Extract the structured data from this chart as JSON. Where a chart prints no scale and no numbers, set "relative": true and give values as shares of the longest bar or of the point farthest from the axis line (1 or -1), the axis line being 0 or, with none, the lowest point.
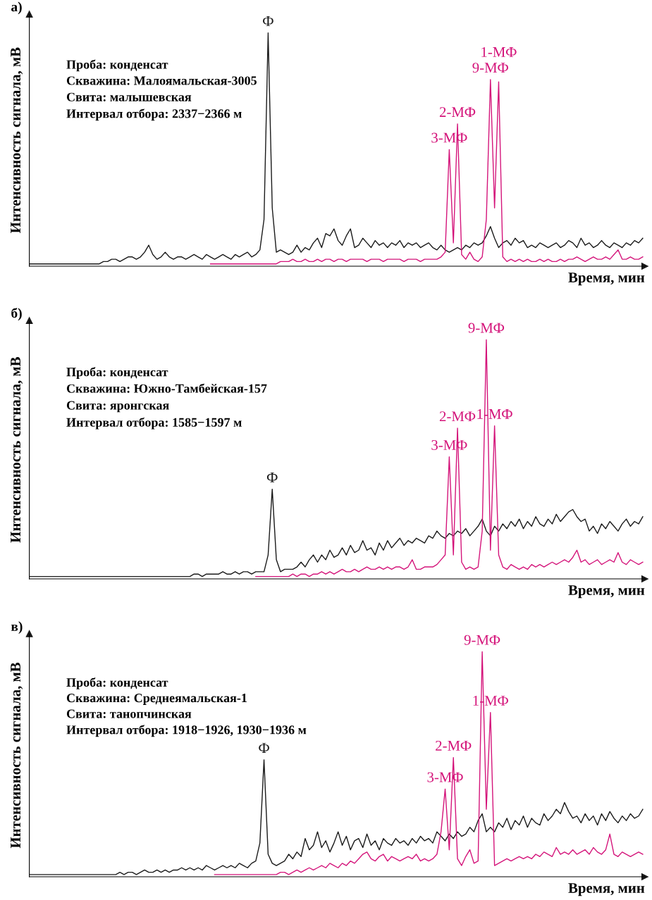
{
  "chart_data": [
    {
      "type": "line",
      "title": "а)",
      "xlabel": "Время, мин",
      "ylabel": "Интенсивность сигнала, мВ",
      "relative": true,
      "tick_labels": false,
      "categories": [
        null,
        null,
        null,
        null,
        null,
        null,
        null,
        null,
        null,
        null,
        null,
        null,
        null,
        null,
        null,
        null,
        null,
        null,
        null,
        null,
        null,
        null,
        null,
        null,
        null,
        null,
        null,
        null,
        null,
        null,
        null,
        null,
        null,
        null,
        null,
        null,
        null,
        null,
        null,
        null,
        null,
        null,
        null,
        null,
        null,
        null,
        null,
        null,
        null,
        null,
        null,
        null,
        null,
        null,
        null,
        null,
        null,
        null,
        null,
        null,
        null,
        null,
        null,
        null,
        null,
        null,
        null,
        null,
        null,
        null,
        null,
        null,
        null,
        null,
        null,
        null,
        null,
        null,
        null,
        null,
        null,
        null,
        null,
        null,
        null,
        null,
        null,
        null,
        null,
        null,
        null,
        null,
        null,
        null,
        null,
        null,
        null,
        null,
        null,
        null,
        null,
        null,
        null,
        null,
        null,
        null,
        null,
        null,
        null,
        null,
        null,
        null,
        null,
        null,
        null,
        null,
        null,
        null,
        null,
        null,
        null,
        null,
        null,
        null,
        null,
        null,
        null,
        null,
        null,
        null,
        null,
        null,
        null,
        null,
        null,
        null,
        null,
        null,
        null,
        null,
        null,
        null,
        null,
        null,
        null,
        null,
        null,
        null,
        null,
        null
      ],
      "series": [
        {
          "color": "#1a1a1a",
          "values": [
            0.01,
            0.01,
            0.01,
            0.01,
            0.01,
            0.01,
            0.01,
            0.01,
            0.01,
            0.01,
            0.01,
            0.01,
            0.01,
            0.01,
            0.01,
            0.01,
            0.01,
            0.01,
            0.02,
            0.02,
            0.03,
            0.03,
            0.02,
            0.03,
            0.04,
            0.04,
            0.03,
            0.04,
            0.06,
            0.09,
            0.05,
            0.03,
            0.04,
            0.06,
            0.04,
            0.03,
            0.04,
            0.04,
            0.03,
            0.04,
            0.05,
            0.04,
            0.03,
            0.05,
            0.04,
            0.03,
            0.04,
            0.05,
            0.04,
            0.03,
            0.05,
            0.04,
            0.05,
            0.06,
            0.04,
            0.05,
            0.07,
            0.2,
            1,
            0.25,
            0.06,
            0.07,
            0.06,
            0.05,
            0.06,
            0.09,
            0.06,
            0.08,
            0.07,
            0.1,
            0.12,
            0.08,
            0.14,
            0.13,
            0.16,
            0.11,
            0.09,
            0.13,
            0.16,
            0.08,
            0.09,
            0.12,
            0.1,
            0.08,
            0.11,
            0.09,
            0.1,
            0.08,
            0.1,
            0.09,
            0.11,
            0.08,
            0.1,
            0.09,
            0.1,
            0.08,
            0.09,
            0.1,
            0.08,
            0.07,
            0.09,
            0.07,
            0.06,
            0.07,
            0.08,
            0.07,
            0.09,
            0.08,
            0.1,
            0.09,
            0.1,
            0.13,
            0.17,
            0.12,
            0.08,
            0.1,
            0.11,
            0.09,
            0.12,
            0.1,
            0.11,
            0.08,
            0.09,
            0.08,
            0.1,
            0.09,
            0.08,
            0.09,
            0.1,
            0.08,
            0.09,
            0.11,
            0.1,
            0.08,
            0.12,
            0.09,
            0.1,
            0.08,
            0.09,
            0.11,
            0.09,
            0.08,
            0.1,
            0.09,
            0.08,
            0.1,
            0.09,
            0.11,
            0.1,
            0.12
          ]
        },
        {
          "color": "#d4147a",
          "values": [
            null,
            null,
            null,
            null,
            null,
            null,
            null,
            null,
            null,
            null,
            null,
            null,
            null,
            null,
            null,
            null,
            null,
            null,
            null,
            null,
            null,
            null,
            null,
            null,
            null,
            null,
            null,
            null,
            null,
            null,
            null,
            null,
            null,
            null,
            null,
            null,
            null,
            null,
            null,
            null,
            null,
            null,
            null,
            null,
            0.01,
            0.01,
            0.01,
            0.01,
            0.01,
            0.01,
            0.01,
            0.01,
            0.01,
            0.01,
            0.01,
            0.01,
            0.01,
            0.01,
            0.01,
            0.01,
            0.01,
            0.02,
            0.02,
            0.02,
            0.03,
            0.02,
            0.02,
            0.03,
            0.02,
            0.02,
            0.03,
            0.02,
            0.03,
            0.03,
            0.02,
            0.03,
            0.03,
            0.02,
            0.03,
            0.03,
            0.03,
            0.03,
            0.02,
            0.03,
            0.03,
            0.03,
            0.02,
            0.03,
            0.03,
            0.03,
            0.03,
            0.02,
            0.03,
            0.03,
            0.03,
            0.02,
            0.03,
            0.03,
            0.03,
            0.03,
            0.04,
            0.06,
            0.5,
            0.1,
            0.61,
            0.05,
            0.03,
            0.06,
            0.03,
            0.02,
            0.04,
            0.2,
            0.8,
            0.25,
            0.79,
            0.04,
            0.02,
            0.03,
            0.02,
            0.03,
            0.02,
            0.03,
            0.02,
            0.02,
            0.03,
            0.02,
            0.03,
            0.02,
            0.02,
            0.03,
            0.02,
            0.03,
            0.03,
            0.04,
            0.03,
            0.02,
            0.03,
            0.04,
            0.03,
            0.03,
            0.04,
            0.03,
            0.05,
            0.07,
            0.03,
            0.03,
            0.04,
            0.03,
            0.03,
            0.04
          ]
        }
      ],
      "annotations": [
        "Проба: конденсат",
        "Скважина: Малоямальская-3005",
        "Свита: малышевская",
        "Интервал отбора: 2337−2366 м",
        {
          "text": "Ф",
          "y": 1
        },
        {
          "text": "3-МФ",
          "y": 0.5
        },
        {
          "text": "2-МФ",
          "y": 0.61
        },
        {
          "text": "9-МФ",
          "y": 0.8
        },
        {
          "text": "1-МФ",
          "y": 0.79
        }
      ]
    },
    {
      "type": "line",
      "title": "б)",
      "xlabel": "Время, мин",
      "ylabel": "Интенсивность сигнала, мВ",
      "relative": true,
      "tick_labels": false,
      "categories": [
        null,
        null,
        null,
        null,
        null,
        null,
        null,
        null,
        null,
        null,
        null,
        null,
        null,
        null,
        null,
        null,
        null,
        null,
        null,
        null,
        null,
        null,
        null,
        null,
        null,
        null,
        null,
        null,
        null,
        null,
        null,
        null,
        null,
        null,
        null,
        null,
        null,
        null,
        null,
        null,
        null,
        null,
        null,
        null,
        null,
        null,
        null,
        null,
        null,
        null,
        null,
        null,
        null,
        null,
        null,
        null,
        null,
        null,
        null,
        null,
        null,
        null,
        null,
        null,
        null,
        null,
        null,
        null,
        null,
        null,
        null,
        null,
        null,
        null,
        null,
        null,
        null,
        null,
        null,
        null,
        null,
        null,
        null,
        null,
        null,
        null,
        null,
        null,
        null,
        null,
        null,
        null,
        null,
        null,
        null,
        null,
        null,
        null,
        null,
        null,
        null,
        null,
        null,
        null,
        null,
        null,
        null,
        null,
        null,
        null,
        null,
        null,
        null,
        null,
        null,
        null,
        null,
        null,
        null,
        null,
        null,
        null,
        null,
        null,
        null,
        null,
        null,
        null,
        null,
        null,
        null,
        null,
        null,
        null,
        null,
        null,
        null,
        null,
        null,
        null,
        null,
        null,
        null,
        null,
        null,
        null,
        null,
        null,
        null,
        null
      ],
      "series": [
        {
          "color": "#1a1a1a",
          "values": [
            0.01,
            0.01,
            0.01,
            0.01,
            0.01,
            0.01,
            0.01,
            0.01,
            0.01,
            0.01,
            0.01,
            0.01,
            0.01,
            0.01,
            0.01,
            0.01,
            0.01,
            0.01,
            0.01,
            0.01,
            0.01,
            0.01,
            0.01,
            0.01,
            0.01,
            0.01,
            0.01,
            0.01,
            0.01,
            0.01,
            0.01,
            0.01,
            0.01,
            0.01,
            0.01,
            0.01,
            0.01,
            0.01,
            0.01,
            0.01,
            0.02,
            0.02,
            0.01,
            0.02,
            0.02,
            0.02,
            0.02,
            0.03,
            0.02,
            0.02,
            0.03,
            0.02,
            0.03,
            0.03,
            0.02,
            0.03,
            0.03,
            0.03,
            0.1,
            0.375,
            0.08,
            0.03,
            0.04,
            0.04,
            0.04,
            0.05,
            0.07,
            0.05,
            0.08,
            0.1,
            0.07,
            0.1,
            0.08,
            0.12,
            0.09,
            0.1,
            0.13,
            0.1,
            0.14,
            0.11,
            0.12,
            0.16,
            0.12,
            0.13,
            0.1,
            0.15,
            0.12,
            0.16,
            0.13,
            0.15,
            0.17,
            0.14,
            0.16,
            0.15,
            0.17,
            0.16,
            0.15,
            0.18,
            0.17,
            0.2,
            0.18,
            0.17,
            0.19,
            0.18,
            0.2,
            0.19,
            0.21,
            0.18,
            0.2,
            0.22,
            0.25,
            0.2,
            0.18,
            0.22,
            0.2,
            0.23,
            0.21,
            0.24,
            0.22,
            0.25,
            0.21,
            0.24,
            0.22,
            0.26,
            0.23,
            0.22,
            0.25,
            0.23,
            0.27,
            0.24,
            0.26,
            0.28,
            0.29,
            0.26,
            0.24,
            0.25,
            0.2,
            0.22,
            0.19,
            0.23,
            0.21,
            0.24,
            0.22,
            0.2,
            0.23,
            0.25,
            0.22,
            0.24,
            0.23,
            0.26
          ]
        },
        {
          "color": "#d4147a",
          "values": [
            null,
            null,
            null,
            null,
            null,
            null,
            null,
            null,
            null,
            null,
            null,
            null,
            null,
            null,
            null,
            null,
            null,
            null,
            null,
            null,
            null,
            null,
            null,
            null,
            null,
            null,
            null,
            null,
            null,
            null,
            null,
            null,
            null,
            null,
            null,
            null,
            null,
            null,
            null,
            null,
            null,
            null,
            null,
            null,
            null,
            null,
            null,
            null,
            null,
            null,
            null,
            null,
            null,
            null,
            null,
            0.01,
            0.01,
            0.01,
            0.01,
            0.01,
            0.01,
            0.01,
            0.01,
            0.01,
            0.02,
            0.01,
            0.02,
            0.02,
            0.01,
            0.02,
            0.02,
            0.03,
            0.02,
            0.03,
            0.02,
            0.03,
            0.04,
            0.03,
            0.03,
            0.04,
            0.03,
            0.04,
            0.05,
            0.04,
            0.04,
            0.05,
            0.04,
            0.05,
            0.04,
            0.05,
            0.05,
            0.04,
            0.05,
            0.08,
            0.04,
            0.04,
            0.05,
            0.05,
            0.05,
            0.06,
            0.08,
            0.1,
            0.51,
            0.1,
            0.63,
            0.07,
            0.04,
            0.05,
            0.04,
            0.05,
            0.2,
            1,
            0.12,
            0.64,
            0.1,
            0.05,
            0.04,
            0.06,
            0.05,
            0.04,
            0.05,
            0.04,
            0.06,
            0.05,
            0.06,
            0.05,
            0.06,
            0.07,
            0.06,
            0.07,
            0.08,
            0.07,
            0.09,
            0.12,
            0.07,
            0.08,
            0.06,
            0.07,
            0.08,
            0.06,
            0.07,
            0.08,
            0.07,
            0.11,
            0.07,
            0.06,
            0.08,
            0.07,
            0.06,
            0.07
          ]
        }
      ],
      "annotations": [
        "Проба: конденсат",
        "Скважина: Южно-Тамбейская-157",
        "Свита: яронгская",
        "Интервал отбора: 1585−1597 м",
        {
          "text": "Ф",
          "y": 0.375
        },
        {
          "text": "3-МФ",
          "y": 0.51
        },
        {
          "text": "2-МФ",
          "y": 0.63
        },
        {
          "text": "9-МФ",
          "y": 1
        },
        {
          "text": "1-МФ",
          "y": 0.64
        }
      ]
    },
    {
      "type": "line",
      "title": "в)",
      "xlabel": "Время, мин",
      "ylabel": "Интенсивность сигнала, мВ",
      "relative": true,
      "tick_labels": false,
      "categories": [
        null,
        null,
        null,
        null,
        null,
        null,
        null,
        null,
        null,
        null,
        null,
        null,
        null,
        null,
        null,
        null,
        null,
        null,
        null,
        null,
        null,
        null,
        null,
        null,
        null,
        null,
        null,
        null,
        null,
        null,
        null,
        null,
        null,
        null,
        null,
        null,
        null,
        null,
        null,
        null,
        null,
        null,
        null,
        null,
        null,
        null,
        null,
        null,
        null,
        null,
        null,
        null,
        null,
        null,
        null,
        null,
        null,
        null,
        null,
        null,
        null,
        null,
        null,
        null,
        null,
        null,
        null,
        null,
        null,
        null,
        null,
        null,
        null,
        null,
        null,
        null,
        null,
        null,
        null,
        null,
        null,
        null,
        null,
        null,
        null,
        null,
        null,
        null,
        null,
        null,
        null,
        null,
        null,
        null,
        null,
        null,
        null,
        null,
        null,
        null,
        null,
        null,
        null,
        null,
        null,
        null,
        null,
        null,
        null,
        null,
        null,
        null,
        null,
        null,
        null,
        null,
        null,
        null,
        null,
        null,
        null,
        null,
        null,
        null,
        null,
        null,
        null,
        null,
        null,
        null,
        null,
        null,
        null,
        null,
        null,
        null,
        null,
        null,
        null,
        null,
        null,
        null,
        null,
        null,
        null,
        null,
        null,
        null,
        null,
        null
      ],
      "series": [
        {
          "color": "#1a1a1a",
          "values": [
            0.01,
            0.01,
            0.01,
            0.01,
            0.01,
            0.01,
            0.01,
            0.01,
            0.01,
            0.01,
            0.01,
            0.01,
            0.01,
            0.01,
            0.01,
            0.01,
            0.01,
            0.01,
            0.01,
            0.01,
            0.01,
            0.01,
            0.02,
            0.01,
            0.02,
            0.02,
            0.01,
            0.02,
            0.03,
            0.02,
            0.02,
            0.03,
            0.02,
            0.03,
            0.02,
            0.03,
            0.03,
            0.04,
            0.03,
            0.04,
            0.03,
            0.04,
            0.03,
            0.05,
            0.04,
            0.03,
            0.04,
            0.05,
            0.04,
            0.05,
            0.04,
            0.06,
            0.05,
            0.04,
            0.06,
            0.07,
            0.15,
            0.52,
            0.1,
            0.06,
            0.05,
            0.06,
            0.07,
            0.1,
            0.08,
            0.11,
            0.09,
            0.17,
            0.12,
            0.14,
            0.2,
            0.13,
            0.16,
            0.11,
            0.15,
            0.2,
            0.14,
            0.18,
            0.12,
            0.16,
            0.17,
            0.13,
            0.19,
            0.14,
            0.16,
            0.12,
            0.17,
            0.15,
            0.14,
            0.17,
            0.15,
            0.16,
            0.14,
            0.17,
            0.15,
            0.18,
            0.16,
            0.17,
            0.15,
            0.2,
            0.18,
            0.16,
            0.19,
            0.17,
            0.2,
            0.18,
            0.19,
            0.22,
            0.2,
            0.25,
            0.28,
            0.2,
            0.22,
            0.2,
            0.24,
            0.22,
            0.26,
            0.21,
            0.25,
            0.23,
            0.27,
            0.22,
            0.26,
            0.24,
            0.23,
            0.28,
            0.25,
            0.27,
            0.3,
            0.28,
            0.33,
            0.29,
            0.26,
            0.27,
            0.24,
            0.28,
            0.25,
            0.27,
            0.23,
            0.28,
            0.25,
            0.29,
            0.26,
            0.24,
            0.27,
            0.25,
            0.28,
            0.26,
            0.27,
            0.3
          ]
        },
        {
          "color": "#d4147a",
          "values": [
            null,
            null,
            null,
            null,
            null,
            null,
            null,
            null,
            null,
            null,
            null,
            null,
            null,
            null,
            null,
            null,
            null,
            null,
            null,
            null,
            null,
            null,
            null,
            null,
            null,
            null,
            null,
            null,
            null,
            null,
            null,
            null,
            null,
            null,
            null,
            null,
            null,
            null,
            null,
            null,
            null,
            null,
            null,
            null,
            null,
            0.01,
            0.01,
            0.01,
            0.01,
            0.01,
            0.01,
            0.01,
            0.01,
            0.01,
            0.01,
            0.01,
            0.01,
            0.01,
            0.01,
            0.01,
            0.01,
            0.02,
            0.02,
            0.01,
            0.02,
            0.03,
            0.02,
            0.03,
            0.04,
            0.03,
            0.04,
            0.05,
            0.04,
            0.06,
            0.05,
            0.04,
            0.06,
            0.05,
            0.07,
            0.06,
            0.08,
            0.1,
            0.11,
            0.08,
            0.07,
            0.09,
            0.1,
            0.07,
            0.09,
            0.08,
            0.07,
            0.08,
            0.09,
            0.08,
            0.1,
            0.07,
            0.08,
            0.07,
            0.08,
            0.1,
            0.2,
            0.39,
            0.12,
            0.53,
            0.08,
            0.05,
            0.09,
            0.12,
            0.06,
            0.07,
            1,
            0.3,
            0.73,
            0.05,
            0.06,
            0.07,
            0.08,
            0.07,
            0.08,
            0.09,
            0.08,
            0.09,
            0.08,
            0.1,
            0.09,
            0.11,
            0.1,
            0.09,
            0.13,
            0.1,
            0.11,
            0.1,
            0.12,
            0.1,
            0.11,
            0.12,
            0.1,
            0.13,
            0.11,
            0.1,
            0.12,
            0.19,
            0.1,
            0.09,
            0.11,
            0.1,
            0.09,
            0.1,
            0.11,
            0.1
          ]
        }
      ],
      "annotations": [
        "Проба: конденсат",
        "Скважина: Среднеямальская-1",
        "Свита: танопчинская",
        "Интервал отбора: 1918−1926, 1930−1936 м",
        {
          "text": "Ф",
          "y": 0.52
        },
        {
          "text": "3-МФ",
          "y": 0.39
        },
        {
          "text": "2-МФ",
          "y": 0.53
        },
        {
          "text": "9-МФ",
          "y": 1
        },
        {
          "text": "1-МФ",
          "y": 0.73
        }
      ]
    }
  ]
}
